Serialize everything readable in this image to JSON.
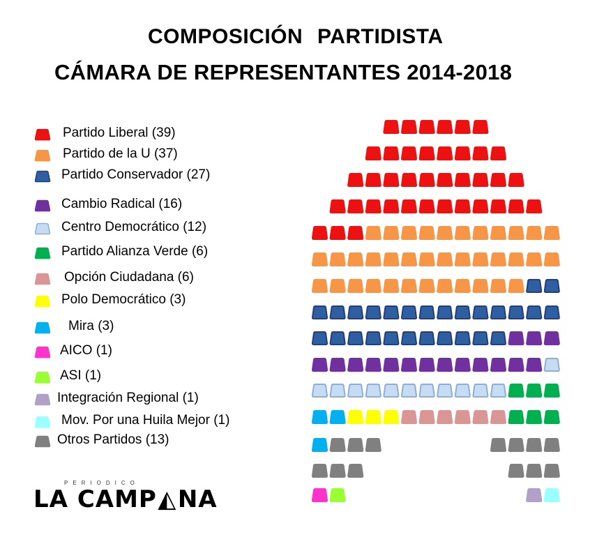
{
  "chart_data": {
    "type": "parliament",
    "title": "COMPOSICIÓN  PARTIDISTA",
    "subtitle": "CÁMARA DE REPRESENTANTES 2014-2018",
    "total_seats": 166,
    "series": [
      {
        "name": "Partido Liberal",
        "label": "Partido Liberal  (39)",
        "value": 39,
        "color": "#ee1111",
        "border": "#ee1111"
      },
      {
        "name": "Partido de la U",
        "label": "Partido de la U (37)",
        "value": 37,
        "color": "#f79646",
        "border": "#f79646"
      },
      {
        "name": "Partido Conservador",
        "label": "Partido Conservador (27)",
        "value": 27,
        "color": "#2e5fa3",
        "border": "#243f78"
      },
      {
        "name": "Cambio Radical",
        "label": "Cambio Radical (16)",
        "value": 16,
        "color": "#7030a0",
        "border": "#7030a0"
      },
      {
        "name": "Centro Democrático",
        "label": "Centro Democrático (12)",
        "value": 12,
        "color": "#c6dcf2",
        "border": "#8eaed4"
      },
      {
        "name": "Partido Alianza Verde",
        "label": "Partido Alianza Verde (6)",
        "value": 6,
        "color": "#00b050",
        "border": "#00b050"
      },
      {
        "name": "Opción Ciudadana",
        "label": "Opción Ciudadana (6)",
        "value": 6,
        "color": "#da9694",
        "border": "#da9694"
      },
      {
        "name": "Polo Democrático",
        "label": "Polo Democrático (3)",
        "value": 3,
        "color": "#ffff00",
        "border": "#ffff00"
      },
      {
        "name": "Mira",
        "label": "Mira (3)",
        "value": 3,
        "color": "#00b0f0",
        "border": "#00b0f0"
      },
      {
        "name": "AICO",
        "label": "AICO (1)",
        "value": 1,
        "color": "#ff33cc",
        "border": "#ff33cc"
      },
      {
        "name": "ASI",
        "label": "ASI (1)",
        "value": 1,
        "color": "#99ff33",
        "border": "#99ff33"
      },
      {
        "name": "Integración Regional",
        "label": "Integración Regional (1)",
        "value": 1,
        "color": "#b1a0c7",
        "border": "#b1a0c7"
      },
      {
        "name": "Mov. Por una Huila Mejor",
        "label": "Mov. Por una Huila Mejor (1)",
        "value": 1,
        "color": "#99ffff",
        "border": "#99ffff"
      },
      {
        "name": "Otros Partidos",
        "label": "Otros Partidos (13)",
        "value": 13,
        "color": "#808080",
        "border": "#808080"
      }
    ],
    "legend_position": "left"
  },
  "logo": {
    "subtext": "PERIODICO",
    "text": "LA CAMPANA"
  }
}
